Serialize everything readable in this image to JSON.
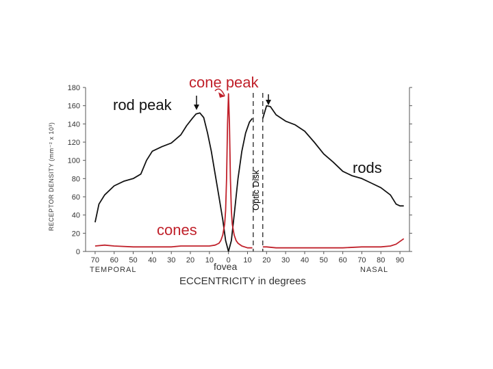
{
  "chart_data": {
    "type": "line",
    "title": "",
    "xlabel": "ECCENTRICITY in degrees",
    "ylabel": "RECEPTOR DENSITY (mm⁻² x 10³)",
    "xlim": [
      -75,
      95
    ],
    "ylim": [
      0,
      180
    ],
    "x_ticks": [
      -70,
      -60,
      -50,
      -40,
      -30,
      -20,
      -10,
      0,
      10,
      20,
      30,
      40,
      50,
      60,
      70,
      80,
      90
    ],
    "x_tick_labels": [
      "70",
      "60",
      "50",
      "40",
      "30",
      "20",
      "10",
      "0",
      "10",
      "20",
      "30",
      "40",
      "50",
      "60",
      "70",
      "80",
      "90"
    ],
    "y_ticks": [
      0,
      20,
      40,
      60,
      80,
      100,
      120,
      140,
      160,
      180
    ],
    "y_tick_labels": [
      "0",
      "20",
      "40",
      "60",
      "80",
      "100",
      "120",
      "140",
      "160",
      "180"
    ],
    "left_side_label": "TEMPORAL",
    "right_side_label": "NASAL",
    "center_label": "fovea",
    "series": [
      {
        "name": "rods",
        "color": "#111111",
        "segments": [
          {
            "x": [
              -70,
              -68,
              -65,
              -60,
              -55,
              -50,
              -46,
              -43,
              -40,
              -35,
              -30,
              -25,
              -22,
              -19,
              -17,
              -15,
              -13,
              -11,
              -9,
              -7,
              -5,
              -3,
              -1.5,
              0
            ],
            "y": [
              32,
              52,
              62,
              72,
              77,
              80,
              85,
              100,
              110,
              115,
              119,
              128,
              138,
              146,
              151,
              152,
              147,
              130,
              110,
              85,
              60,
              35,
              12,
              0
            ]
          },
          {
            "x": [
              0,
              1.5,
              3,
              5,
              7,
              9,
              11,
              12.5
            ],
            "y": [
              0,
              12,
              40,
              80,
              110,
              130,
              142,
              146
            ]
          },
          {
            "x": [
              18,
              20,
              22,
              25,
              30,
              35,
              40,
              45,
              50,
              55,
              60,
              65,
              70,
              75,
              80,
              85,
              88,
              90,
              92
            ],
            "y": [
              146,
              160,
              159,
              150,
              143,
              139,
              132,
              120,
              107,
              98,
              88,
              83,
              80,
              75,
              70,
              62,
              52,
              50,
              50
            ]
          }
        ]
      },
      {
        "name": "cones",
        "color": "#c0202a",
        "segments": [
          {
            "x": [
              -70,
              -65,
              -60,
              -50,
              -40,
              -30,
              -25,
              -20,
              -15,
              -10,
              -7,
              -5,
              -4,
              -3,
              -2,
              -1.5,
              -1,
              -0.5,
              0,
              0.5,
              1,
              1.5,
              2,
              3,
              4,
              5,
              7,
              10,
              12.5
            ],
            "y": [
              6,
              7,
              6,
              5,
              5,
              5,
              6,
              6,
              6,
              6,
              7,
              9,
              12,
              18,
              30,
              45,
              80,
              140,
              173,
              140,
              80,
              45,
              30,
              18,
              12,
              9,
              6,
              4,
              4
            ]
          },
          {
            "x": [
              18,
              20,
              25,
              30,
              40,
              50,
              60,
              70,
              75,
              80,
              85,
              88,
              90,
              92
            ],
            "y": [
              5,
              5,
              4,
              4,
              4,
              4,
              4,
              5,
              5,
              5,
              6,
              8,
              11,
              14
            ]
          }
        ]
      }
    ],
    "optic_disk": {
      "label": "Optic Disk",
      "x_start": 13,
      "x_end": 18
    },
    "annotations": [
      {
        "text": "cone peak",
        "color": "#c0202a",
        "x": 0,
        "y": 173
      },
      {
        "text": "rod peak",
        "color": "#111111",
        "x": -16,
        "y": 152
      },
      {
        "text": "rods",
        "color": "#111111",
        "x": 70,
        "y": 92
      },
      {
        "text": "cones",
        "color": "#c0202a",
        "x": -30,
        "y": 20
      }
    ]
  }
}
